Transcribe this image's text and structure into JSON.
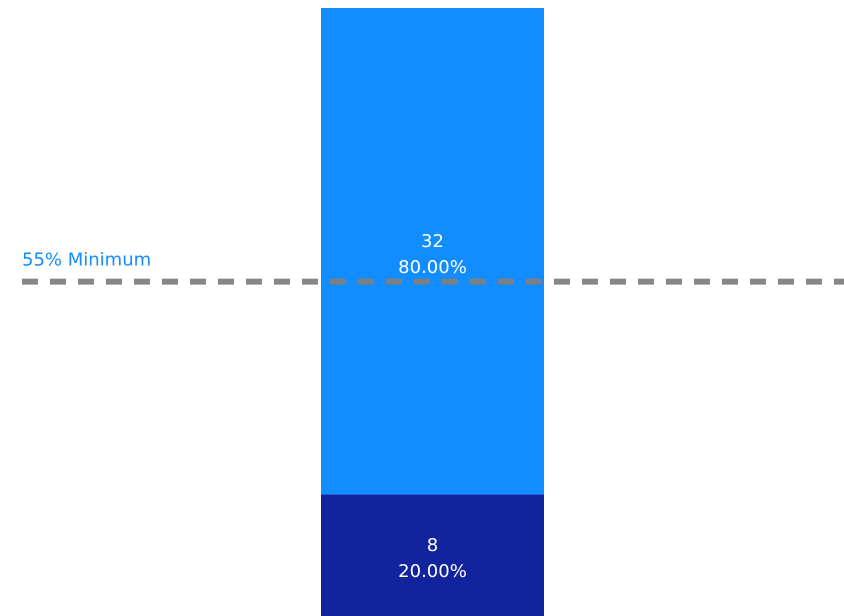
{
  "chart_data": {
    "type": "bar",
    "stacked": true,
    "categories": [
      ""
    ],
    "series": [
      {
        "values": [
          8
        ],
        "labels": {
          "count": "8",
          "percent": "20.00%"
        },
        "color": "#12239E"
      },
      {
        "values": [
          32
        ],
        "labels": {
          "count": "32",
          "percent": "80.00%"
        },
        "color": "#118DFF"
      }
    ],
    "total": 40,
    "reference_line": {
      "label": "55% Minimum",
      "value_percent": 55,
      "color": "#808080",
      "label_color": "#118DFF",
      "style": "dashed"
    },
    "grid": false,
    "legend": "none",
    "axes_visible": false
  }
}
